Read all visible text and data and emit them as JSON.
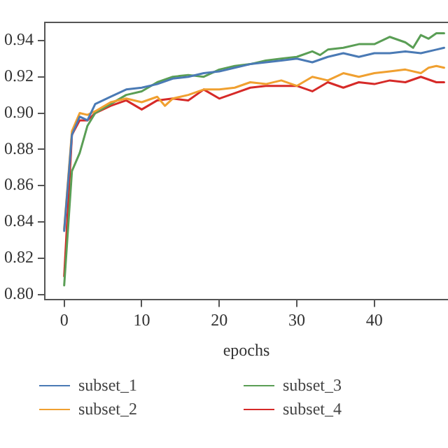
{
  "chart_data": {
    "type": "line",
    "xlabel": "epochs",
    "legend": "bottom",
    "grid": false,
    "marker": "none",
    "line_style": "solid",
    "xlim": [
      -2.5,
      49.5
    ],
    "xticks": [
      0,
      10,
      20,
      30,
      40
    ],
    "ylim": [
      0.797,
      0.95
    ],
    "yticks": [
      {
        "value": 0.8,
        "label": "0.80"
      },
      {
        "value": 0.82,
        "label": "0.82"
      },
      {
        "value": 0.84,
        "label": "0.84"
      },
      {
        "value": 0.86,
        "label": "0.86"
      },
      {
        "value": 0.88,
        "label": "0.88"
      },
      {
        "value": 0.9,
        "label": "0.90"
      },
      {
        "value": 0.92,
        "label": "0.92"
      },
      {
        "value": 0.94,
        "label": "0.94"
      }
    ],
    "series": [
      {
        "name": "subset_1",
        "color": "#4a7ab5",
        "x": [
          0,
          1,
          2,
          3,
          4,
          6,
          8,
          10,
          12,
          14,
          16,
          18,
          20,
          22,
          24,
          26,
          28,
          30,
          32,
          34,
          36,
          38,
          40,
          42,
          44,
          46,
          48,
          49
        ],
        "values": [
          0.835,
          0.888,
          0.898,
          0.896,
          0.905,
          0.909,
          0.913,
          0.914,
          0.916,
          0.919,
          0.92,
          0.922,
          0.923,
          0.925,
          0.927,
          0.928,
          0.929,
          0.93,
          0.928,
          0.931,
          0.933,
          0.931,
          0.933,
          0.933,
          0.934,
          0.933,
          0.935,
          0.936
        ]
      },
      {
        "name": "subset_2",
        "color": "#f0a030",
        "x": [
          0,
          1,
          2,
          3,
          4,
          6,
          8,
          10,
          12,
          13,
          14,
          16,
          18,
          20,
          22,
          24,
          26,
          28,
          30,
          32,
          34,
          36,
          38,
          40,
          42,
          44,
          46,
          47,
          48,
          49
        ],
        "values": [
          0.836,
          0.89,
          0.9,
          0.899,
          0.901,
          0.906,
          0.908,
          0.906,
          0.909,
          0.904,
          0.908,
          0.91,
          0.913,
          0.913,
          0.914,
          0.917,
          0.916,
          0.918,
          0.915,
          0.92,
          0.918,
          0.922,
          0.92,
          0.922,
          0.923,
          0.924,
          0.922,
          0.925,
          0.926,
          0.925
        ]
      },
      {
        "name": "subset_3",
        "color": "#5a9e55",
        "x": [
          0,
          1,
          2,
          3,
          4,
          6,
          8,
          10,
          12,
          14,
          16,
          18,
          20,
          22,
          24,
          26,
          28,
          30,
          32,
          33,
          34,
          36,
          38,
          40,
          42,
          44,
          45,
          46,
          47,
          48,
          49
        ],
        "values": [
          0.805,
          0.868,
          0.878,
          0.893,
          0.9,
          0.905,
          0.91,
          0.912,
          0.917,
          0.92,
          0.921,
          0.92,
          0.924,
          0.926,
          0.927,
          0.929,
          0.93,
          0.931,
          0.934,
          0.932,
          0.935,
          0.936,
          0.938,
          0.938,
          0.942,
          0.939,
          0.936,
          0.943,
          0.941,
          0.944,
          0.944
        ]
      },
      {
        "name": "subset_4",
        "color": "#d62a28",
        "x": [
          0,
          1,
          2,
          3,
          4,
          6,
          8,
          10,
          12,
          14,
          16,
          18,
          20,
          22,
          24,
          26,
          28,
          30,
          32,
          34,
          36,
          38,
          40,
          42,
          44,
          46,
          48,
          49
        ],
        "values": [
          0.81,
          0.888,
          0.896,
          0.896,
          0.9,
          0.904,
          0.907,
          0.902,
          0.907,
          0.908,
          0.907,
          0.913,
          0.908,
          0.911,
          0.914,
          0.915,
          0.915,
          0.915,
          0.912,
          0.917,
          0.914,
          0.917,
          0.916,
          0.918,
          0.917,
          0.92,
          0.917,
          0.917
        ]
      }
    ]
  }
}
